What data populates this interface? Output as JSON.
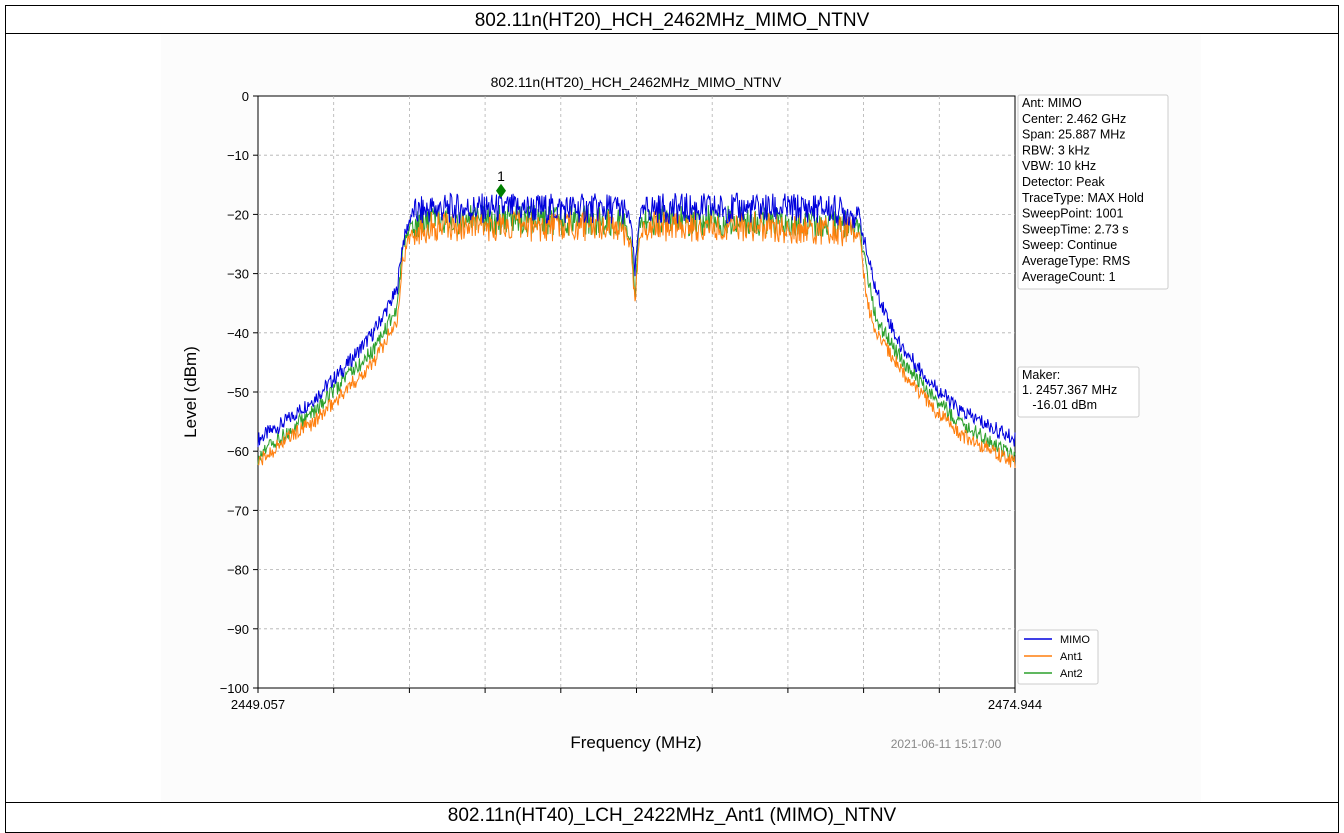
{
  "page": {
    "header_title": "802.11n(HT20)_HCH_2462MHz_MIMO_NTNV",
    "footer_title": "802.11n(HT40)_LCH_2422MHz_Ant1 (MIMO)_NTNV"
  },
  "chart_data": {
    "type": "line",
    "title": "802.11n(HT20)_HCH_2462MHz_MIMO_NTNV",
    "xlabel": "Frequency (MHz)",
    "ylabel": "Level (dBm)",
    "xlim": [
      2449.057,
      2474.944
    ],
    "ylim": [
      -100,
      0
    ],
    "x_tick_labels": [
      "2449.057",
      "2474.944"
    ],
    "y_ticks": [
      0,
      -10,
      -20,
      -30,
      -40,
      -50,
      -60,
      -70,
      -80,
      -90,
      -100
    ],
    "y_tick_labels": [
      "0",
      "−10",
      "−20",
      "−30",
      "−40",
      "−50",
      "−60",
      "−70",
      "−80",
      "−90",
      "−100"
    ],
    "grid": true,
    "legend_position": "bottom-right",
    "series": [
      {
        "name": "MIMO",
        "color": "#0000dd",
        "x": [
          2449.057,
          2450.0,
          2451.0,
          2452.0,
          2453.0,
          2453.8,
          2454.0,
          2454.3,
          2455.0,
          2458.0,
          2459.5,
          2460.5,
          2461.5,
          2461.8,
          2461.95,
          2462.1,
          2462.4,
          2463.0,
          2466.0,
          2468.5,
          2469.6,
          2469.9,
          2470.2,
          2471.0,
          2472.0,
          2473.0,
          2474.944
        ],
        "y": [
          -58,
          -55,
          -51,
          -46,
          -40,
          -33,
          -25,
          -20,
          -19,
          -19,
          -19,
          -19,
          -19,
          -21,
          -30,
          -20,
          -19,
          -19,
          -19,
          -19,
          -20,
          -27,
          -33,
          -42,
          -48,
          -53,
          -58
        ]
      },
      {
        "name": "Ant1",
        "color": "#ff7f0e",
        "x": [
          2449.057,
          2450.0,
          2451.0,
          2452.0,
          2453.0,
          2453.8,
          2454.0,
          2454.3,
          2455.0,
          2458.0,
          2461.5,
          2461.8,
          2461.95,
          2462.1,
          2462.4,
          2463.0,
          2466.0,
          2469.6,
          2469.9,
          2470.2,
          2471.0,
          2472.0,
          2473.0,
          2474.944
        ],
        "y": [
          -62,
          -58,
          -55,
          -50,
          -45,
          -38,
          -28,
          -23,
          -22,
          -22,
          -22,
          -25,
          -35,
          -23,
          -22,
          -22,
          -22,
          -23,
          -35,
          -40,
          -46,
          -52,
          -57,
          -62
        ]
      },
      {
        "name": "Ant2",
        "color": "#2ca02c",
        "x": [
          2449.057,
          2450.0,
          2451.0,
          2452.0,
          2453.0,
          2453.8,
          2454.0,
          2454.3,
          2455.0,
          2458.0,
          2461.5,
          2461.8,
          2461.95,
          2462.1,
          2462.4,
          2463.0,
          2466.0,
          2469.6,
          2469.9,
          2470.2,
          2471.0,
          2472.0,
          2473.0,
          2474.944
        ],
        "y": [
          -61,
          -57,
          -53,
          -48,
          -43,
          -36,
          -26,
          -22,
          -21,
          -21,
          -21,
          -24,
          -33,
          -22,
          -21,
          -21,
          -21,
          -22,
          -30,
          -38,
          -44,
          -50,
          -55,
          -61
        ]
      }
    ],
    "marker": {
      "label": "1",
      "x": 2457.367,
      "y": -16.01,
      "color": "#008000"
    },
    "info_box": [
      "Ant: MIMO",
      "Center: 2.462 GHz",
      "Span: 25.887 MHz",
      "RBW: 3 kHz",
      "VBW: 10 kHz",
      "Detector: Peak",
      "TraceType: MAX Hold",
      "SweepPoint: 1001",
      "SweepTime: 2.73 s",
      "Sweep: Continue",
      "AverageType: RMS",
      "AverageCount: 1"
    ],
    "marker_box": [
      "Maker:",
      "1. 2457.367 MHz",
      "   -16.01 dBm"
    ],
    "timestamp": "2021-06-11 15:17:00"
  }
}
